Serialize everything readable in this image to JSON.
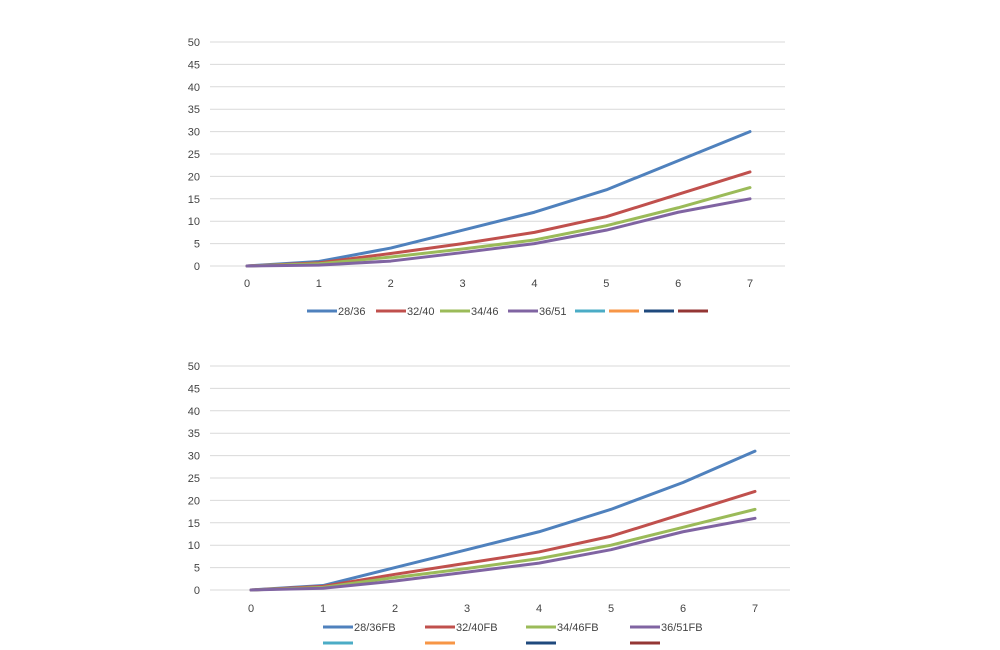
{
  "chart_data": [
    {
      "type": "line",
      "title": "",
      "xlabel": "",
      "ylabel": "",
      "x": [
        0,
        1,
        2,
        3,
        4,
        5,
        6,
        7
      ],
      "x_ticks": [
        "0",
        "1",
        "2",
        "3",
        "4",
        "5",
        "6",
        "7"
      ],
      "ylim": [
        0,
        50
      ],
      "y_ticks": [
        "0",
        "5",
        "10",
        "15",
        "20",
        "25",
        "30",
        "35",
        "40",
        "45",
        "50"
      ],
      "grid": "horizontal",
      "legend_position": "bottom",
      "series": [
        {
          "name": "28/36",
          "color": "#4F81BD",
          "values": [
            0,
            1,
            4,
            8,
            12,
            17,
            23.5,
            30
          ]
        },
        {
          "name": "32/40",
          "color": "#C0504D",
          "values": [
            0,
            0.7,
            2.8,
            5,
            7.5,
            11,
            16,
            21
          ]
        },
        {
          "name": "34/46",
          "color": "#9BBB59",
          "values": [
            0,
            0.5,
            2,
            3.8,
            5.8,
            9,
            13,
            17.5
          ]
        },
        {
          "name": "36/51",
          "color": "#8064A2",
          "values": [
            0,
            0.2,
            1.1,
            3,
            5,
            8,
            12,
            15
          ]
        }
      ],
      "extra_legend_colors": [
        "#4BACC6",
        "#F79646",
        "#1F497D",
        "#943634"
      ]
    },
    {
      "type": "line",
      "title": "",
      "xlabel": "",
      "ylabel": "",
      "x": [
        0,
        1,
        2,
        3,
        4,
        5,
        6,
        7
      ],
      "x_ticks": [
        "0",
        "1",
        "2",
        "3",
        "4",
        "5",
        "6",
        "7"
      ],
      "ylim": [
        0,
        50
      ],
      "y_ticks": [
        "0",
        "5",
        "10",
        "15",
        "20",
        "25",
        "30",
        "35",
        "40",
        "45",
        "50"
      ],
      "grid": "horizontal",
      "legend_position": "bottom",
      "series": [
        {
          "name": "28/36FB",
          "color": "#4F81BD",
          "values": [
            0,
            1,
            5,
            9,
            13,
            18,
            24,
            31
          ]
        },
        {
          "name": "32/40FB",
          "color": "#C0504D",
          "values": [
            0,
            0.8,
            3.5,
            6,
            8.5,
            12,
            17,
            22
          ]
        },
        {
          "name": "34/46FB",
          "color": "#9BBB59",
          "values": [
            0,
            0.6,
            2.8,
            4.8,
            7,
            10,
            14,
            18
          ]
        },
        {
          "name": "36/51FB",
          "color": "#8064A2",
          "values": [
            0,
            0.4,
            2,
            4,
            6,
            9,
            13,
            16
          ]
        }
      ],
      "extra_legend_colors": [
        "#4BACC6",
        "#F79646",
        "#1F497D",
        "#943634"
      ]
    }
  ]
}
